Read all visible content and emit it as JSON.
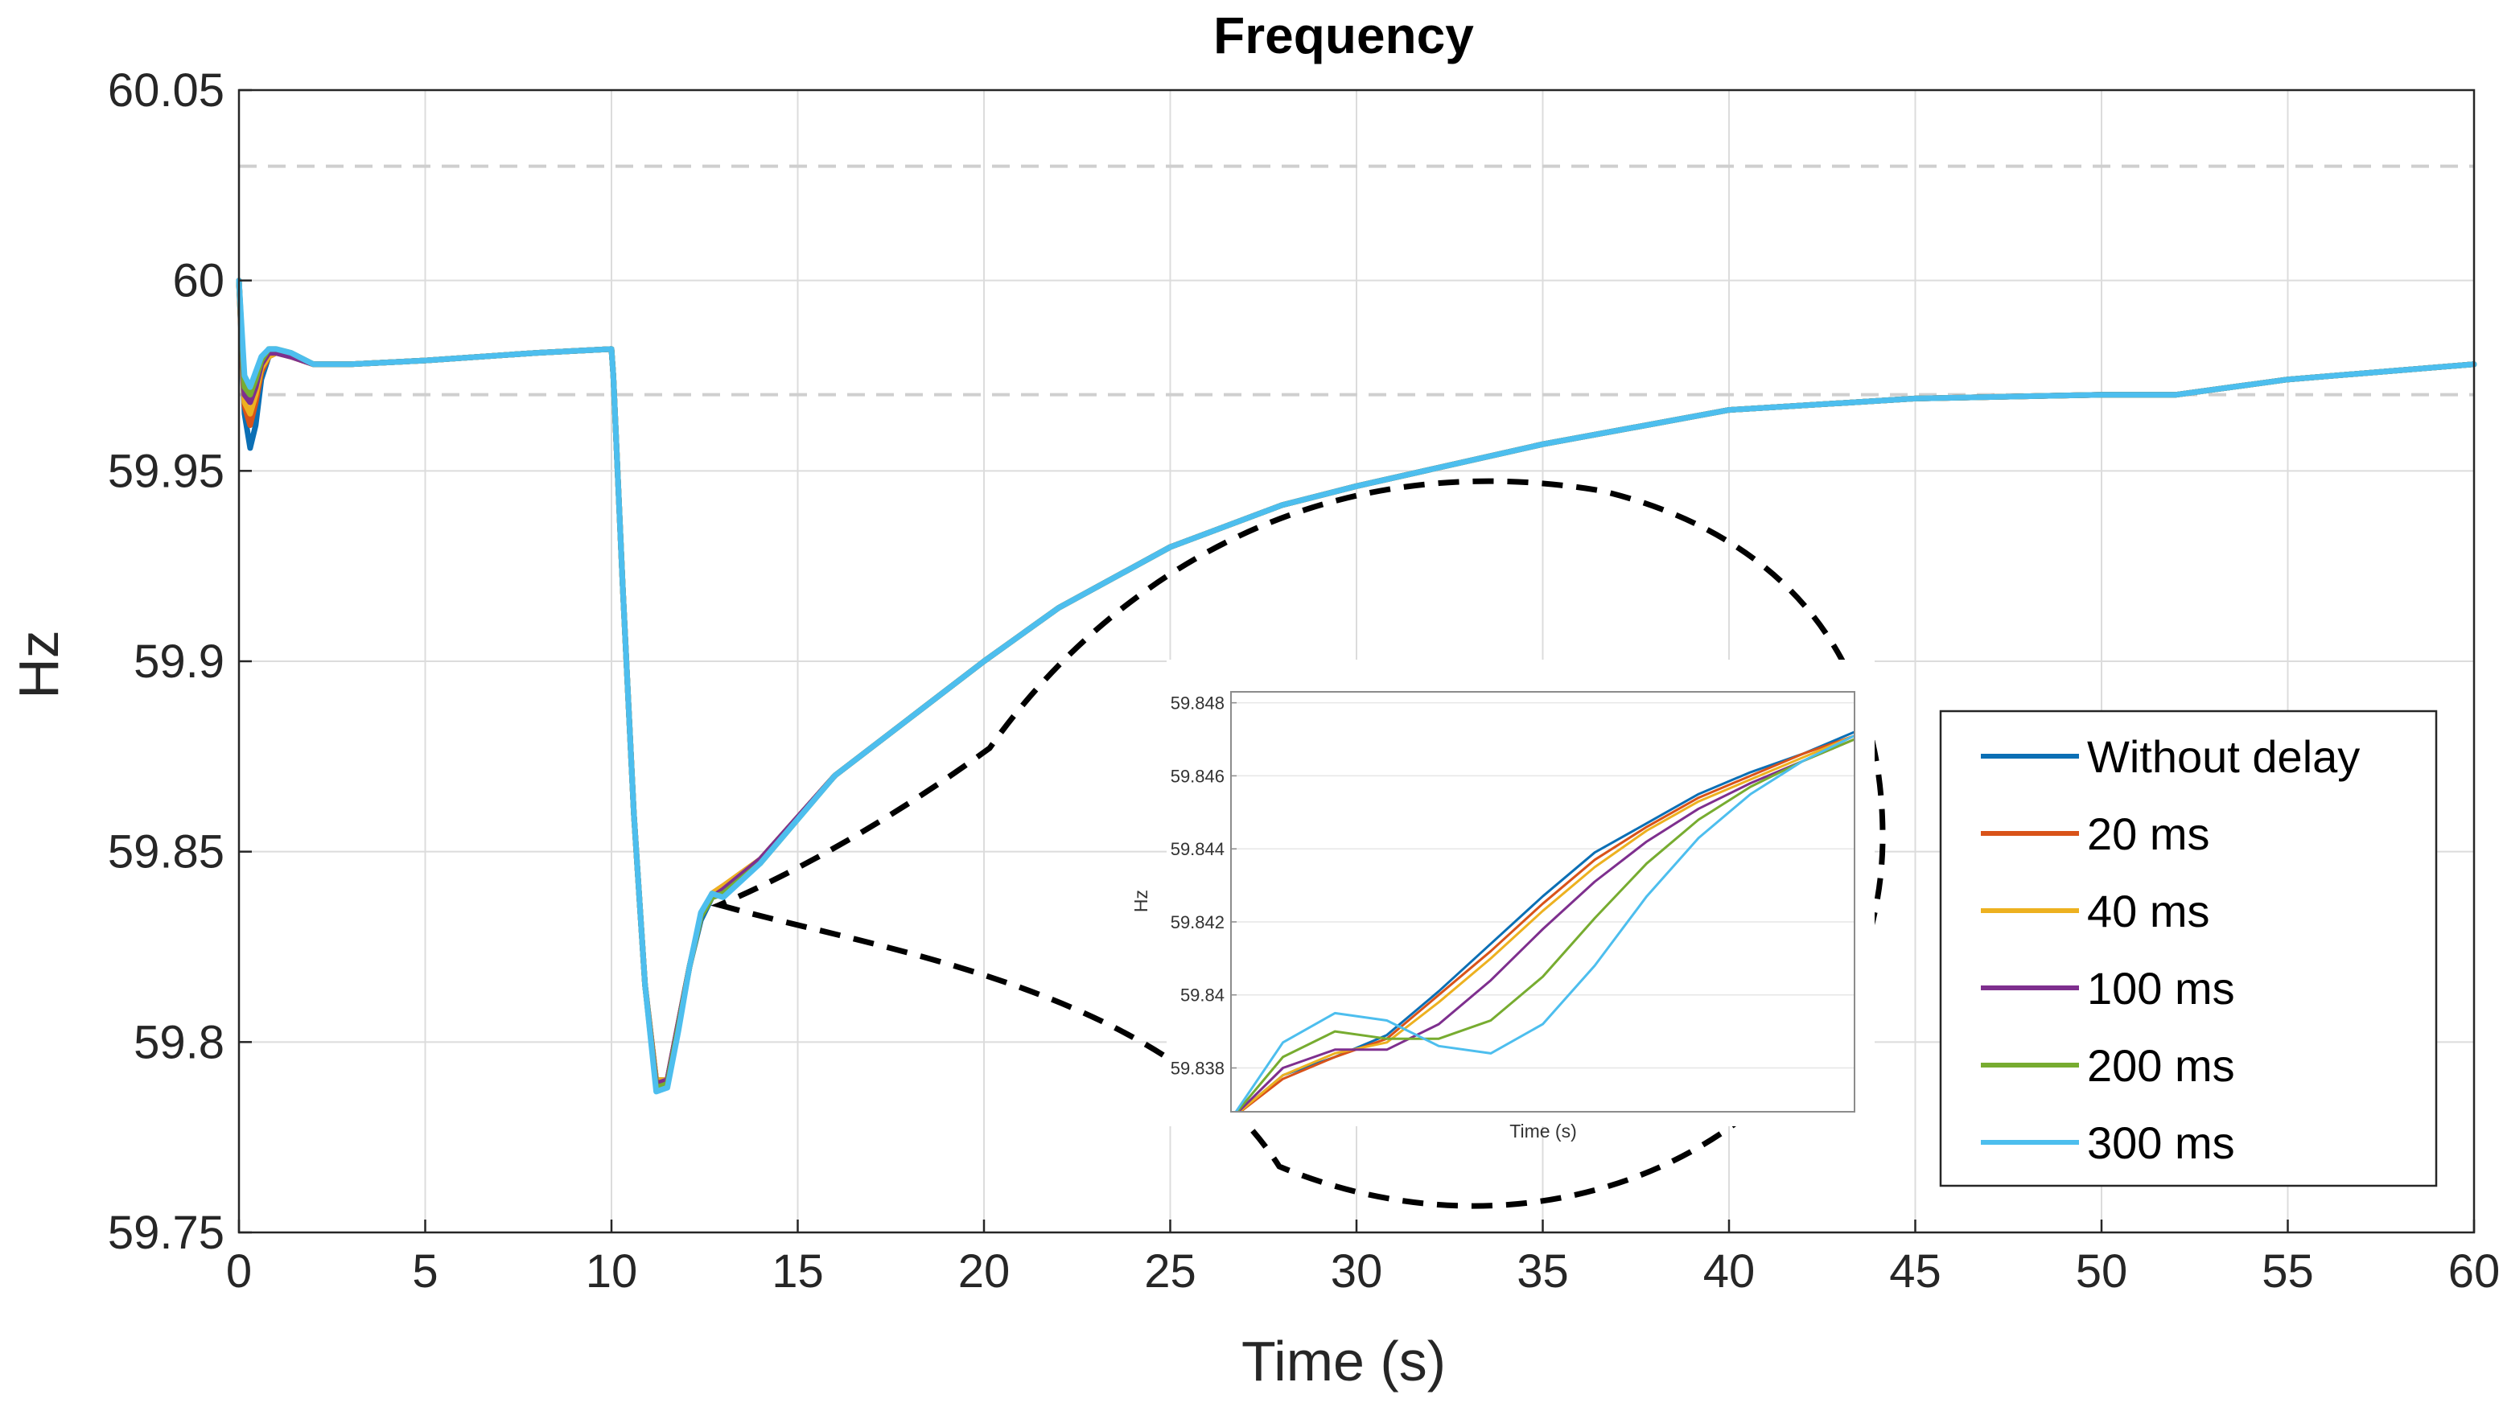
{
  "chart_data": {
    "type": "line",
    "title": "Frequency",
    "xlabel": "Time (s)",
    "ylabel": "Hz",
    "xlim": [
      0,
      60
    ],
    "ylim": [
      59.75,
      60.05
    ],
    "grid": true,
    "x_ticks": [
      0,
      5,
      10,
      15,
      20,
      25,
      30,
      35,
      40,
      45,
      50,
      55,
      60
    ],
    "x_tick_labels": [
      "0",
      "5",
      "10",
      "15",
      "20",
      "25",
      "30",
      "35",
      "40",
      "45",
      "50",
      "55",
      "60"
    ],
    "y_ticks": [
      59.75,
      59.8,
      59.85,
      59.9,
      59.95,
      60,
      60.05
    ],
    "y_tick_labels": [
      "59.75",
      "59.8",
      "59.85",
      "59.9",
      "59.95",
      "60",
      "60.05"
    ],
    "reference_lines": [
      {
        "y": 60.03,
        "style": "dashed"
      },
      {
        "y": 59.97,
        "style": "dashed"
      }
    ],
    "legend_position": "bottom-right",
    "series": [
      {
        "name": "Without delay",
        "color": "#0b6fb5",
        "x": [
          0,
          0.15,
          0.3,
          0.45,
          0.6,
          0.8,
          1.0,
          1.4,
          2.0,
          3.0,
          5.0,
          8.0,
          10.0,
          10.05,
          10.3,
          10.6,
          10.9,
          11.2,
          11.5,
          11.8,
          12.1,
          12.4,
          12.7,
          13.0,
          14.0,
          16.0,
          18.0,
          20.0,
          22.0,
          25.0,
          28.0,
          30.0,
          35.0,
          40.0,
          45.0,
          50.0,
          52.0,
          55.0,
          60.0
        ],
        "y": [
          60.0,
          59.965,
          59.956,
          59.962,
          59.974,
          59.98,
          59.981,
          59.98,
          59.978,
          59.978,
          59.979,
          59.981,
          59.982,
          59.975,
          59.92,
          59.86,
          59.815,
          59.79,
          59.79,
          59.805,
          59.82,
          59.832,
          59.838,
          59.84,
          59.848,
          59.87,
          59.885,
          59.9,
          59.914,
          59.93,
          59.941,
          59.946,
          59.957,
          59.966,
          59.969,
          59.97,
          59.97,
          59.974,
          59.978
        ]
      },
      {
        "name": "20 ms",
        "color": "#d95319",
        "x": [
          0,
          0.15,
          0.3,
          0.45,
          0.6,
          0.8,
          1.0,
          1.4,
          2.0,
          3.0,
          5.0,
          8.0,
          10.0,
          10.05,
          10.3,
          10.6,
          10.9,
          11.2,
          11.5,
          11.8,
          12.1,
          12.4,
          12.7,
          13.0,
          14.0,
          16.0,
          18.0,
          20.0,
          22.0,
          25.0,
          28.0,
          30.0,
          35.0,
          40.0,
          45.0,
          50.0,
          52.0,
          55.0,
          60.0
        ],
        "y": [
          60.0,
          59.967,
          59.962,
          59.968,
          59.976,
          59.98,
          59.981,
          59.98,
          59.978,
          59.978,
          59.979,
          59.981,
          59.982,
          59.975,
          59.92,
          59.86,
          59.815,
          59.79,
          59.79,
          59.805,
          59.82,
          59.833,
          59.839,
          59.841,
          59.848,
          59.87,
          59.885,
          59.9,
          59.914,
          59.93,
          59.941,
          59.946,
          59.957,
          59.966,
          59.969,
          59.97,
          59.97,
          59.974,
          59.978
        ]
      },
      {
        "name": "40 ms",
        "color": "#edb120",
        "x": [
          0,
          0.15,
          0.3,
          0.45,
          0.6,
          0.8,
          1.0,
          1.4,
          2.0,
          3.0,
          5.0,
          8.0,
          10.0,
          10.05,
          10.3,
          10.6,
          10.9,
          11.2,
          11.5,
          11.8,
          12.1,
          12.4,
          12.7,
          13.0,
          14.0,
          16.0,
          18.0,
          20.0,
          22.0,
          25.0,
          28.0,
          30.0,
          35.0,
          40.0,
          45.0,
          50.0,
          52.0,
          55.0,
          60.0
        ],
        "y": [
          60.0,
          59.968,
          59.965,
          59.97,
          59.977,
          59.98,
          59.981,
          59.98,
          59.978,
          59.978,
          59.979,
          59.981,
          59.982,
          59.975,
          59.92,
          59.86,
          59.815,
          59.79,
          59.79,
          59.805,
          59.82,
          59.833,
          59.839,
          59.841,
          59.848,
          59.87,
          59.885,
          59.9,
          59.914,
          59.93,
          59.941,
          59.946,
          59.957,
          59.966,
          59.969,
          59.97,
          59.97,
          59.974,
          59.978
        ]
      },
      {
        "name": "100 ms",
        "color": "#7e2f8e",
        "x": [
          0,
          0.15,
          0.3,
          0.45,
          0.6,
          0.8,
          1.0,
          1.4,
          2.0,
          3.0,
          5.0,
          8.0,
          10.0,
          10.05,
          10.3,
          10.6,
          10.9,
          11.2,
          11.5,
          11.8,
          12.1,
          12.4,
          12.7,
          13.0,
          14.0,
          16.0,
          18.0,
          20.0,
          22.0,
          25.0,
          28.0,
          30.0,
          35.0,
          40.0,
          45.0,
          50.0,
          52.0,
          55.0,
          60.0
        ],
        "y": [
          60.0,
          59.97,
          59.968,
          59.972,
          59.978,
          59.981,
          59.981,
          59.98,
          59.978,
          59.978,
          59.979,
          59.981,
          59.982,
          59.975,
          59.92,
          59.86,
          59.815,
          59.789,
          59.79,
          59.805,
          59.82,
          59.833,
          59.838,
          59.84,
          59.848,
          59.87,
          59.885,
          59.9,
          59.914,
          59.93,
          59.941,
          59.946,
          59.957,
          59.966,
          59.969,
          59.97,
          59.97,
          59.974,
          59.978
        ]
      },
      {
        "name": "200 ms",
        "color": "#77ac30",
        "x": [
          0,
          0.15,
          0.3,
          0.45,
          0.6,
          0.8,
          1.0,
          1.4,
          2.0,
          3.0,
          5.0,
          8.0,
          10.0,
          10.05,
          10.3,
          10.6,
          10.9,
          11.2,
          11.5,
          11.8,
          12.1,
          12.4,
          12.7,
          13.0,
          14.0,
          16.0,
          18.0,
          20.0,
          22.0,
          25.0,
          28.0,
          30.0,
          35.0,
          40.0,
          45.0,
          50.0,
          52.0,
          55.0,
          60.0
        ],
        "y": [
          60.0,
          59.972,
          59.97,
          59.974,
          59.979,
          59.982,
          59.982,
          59.981,
          59.978,
          59.978,
          59.979,
          59.981,
          59.982,
          59.975,
          59.92,
          59.86,
          59.815,
          59.788,
          59.789,
          59.804,
          59.82,
          59.833,
          59.838,
          59.839,
          59.847,
          59.87,
          59.885,
          59.9,
          59.914,
          59.93,
          59.941,
          59.946,
          59.957,
          59.966,
          59.969,
          59.97,
          59.97,
          59.974,
          59.978
        ]
      },
      {
        "name": "300 ms",
        "color": "#4dbeee",
        "x": [
          0,
          0.15,
          0.3,
          0.45,
          0.6,
          0.8,
          1.0,
          1.4,
          2.0,
          3.0,
          5.0,
          8.0,
          10.0,
          10.05,
          10.3,
          10.6,
          10.9,
          11.2,
          11.5,
          11.8,
          12.1,
          12.4,
          12.7,
          13.0,
          14.0,
          16.0,
          18.0,
          20.0,
          22.0,
          25.0,
          28.0,
          30.0,
          35.0,
          40.0,
          45.0,
          50.0,
          52.0,
          55.0,
          60.0
        ],
        "y": [
          60.0,
          59.975,
          59.972,
          59.976,
          59.98,
          59.982,
          59.982,
          59.981,
          59.978,
          59.978,
          59.979,
          59.981,
          59.982,
          59.975,
          59.92,
          59.86,
          59.815,
          59.787,
          59.788,
          59.803,
          59.82,
          59.834,
          59.839,
          59.838,
          59.847,
          59.87,
          59.885,
          59.9,
          59.914,
          59.93,
          59.941,
          59.946,
          59.957,
          59.966,
          59.969,
          59.97,
          59.97,
          59.974,
          59.978
        ]
      }
    ],
    "inset": {
      "xlabel": "Time (s)",
      "ylabel": "Hz",
      "xlim": [
        12.8,
        13.4
      ],
      "ylim": [
        59.8368,
        59.8483
      ],
      "y_ticks": [
        59.838,
        59.84,
        59.842,
        59.844,
        59.846,
        59.848
      ],
      "y_tick_labels": [
        "59.838",
        "59.84",
        "59.842",
        "59.844",
        "59.846",
        "59.848"
      ],
      "series": [
        {
          "name": "Without delay",
          "color": "#0b6fb5",
          "x": [
            12.8,
            12.85,
            12.9,
            12.95,
            13.0,
            13.05,
            13.1,
            13.15,
            13.2,
            13.25,
            13.3,
            13.35,
            13.4
          ],
          "y": [
            59.8366,
            59.8378,
            59.8383,
            59.8389,
            59.8401,
            59.8414,
            59.8427,
            59.8439,
            59.8447,
            59.8455,
            59.8461,
            59.8466,
            59.8472
          ]
        },
        {
          "name": "20 ms",
          "color": "#d95319",
          "x": [
            12.8,
            12.85,
            12.9,
            12.95,
            13.0,
            13.05,
            13.1,
            13.15,
            13.2,
            13.25,
            13.3,
            13.35,
            13.4
          ],
          "y": [
            59.8366,
            59.8377,
            59.8383,
            59.8388,
            59.84,
            59.8412,
            59.8425,
            59.8437,
            59.8446,
            59.8454,
            59.846,
            59.8466,
            59.8471
          ]
        },
        {
          "name": "40 ms",
          "color": "#edb120",
          "x": [
            12.8,
            12.85,
            12.9,
            12.95,
            13.0,
            13.05,
            13.1,
            13.15,
            13.2,
            13.25,
            13.3,
            13.35,
            13.4
          ],
          "y": [
            59.8366,
            59.8378,
            59.8384,
            59.8387,
            59.8398,
            59.841,
            59.8423,
            59.8435,
            59.8445,
            59.8453,
            59.8459,
            59.8465,
            59.8471
          ]
        },
        {
          "name": "100 ms",
          "color": "#7e2f8e",
          "x": [
            12.8,
            12.85,
            12.9,
            12.95,
            13.0,
            13.05,
            13.1,
            13.15,
            13.2,
            13.25,
            13.3,
            13.35,
            13.4
          ],
          "y": [
            59.8366,
            59.838,
            59.8385,
            59.8385,
            59.8392,
            59.8404,
            59.8418,
            59.8431,
            59.8442,
            59.8451,
            59.8458,
            59.8464,
            59.847
          ]
        },
        {
          "name": "200 ms",
          "color": "#77ac30",
          "x": [
            12.8,
            12.85,
            12.9,
            12.95,
            13.0,
            13.05,
            13.1,
            13.15,
            13.2,
            13.25,
            13.3,
            13.35,
            13.4
          ],
          "y": [
            59.8366,
            59.8383,
            59.839,
            59.8388,
            59.8388,
            59.8393,
            59.8405,
            59.8421,
            59.8436,
            59.8448,
            59.8457,
            59.8464,
            59.847
          ]
        },
        {
          "name": "300 ms",
          "color": "#4dbeee",
          "x": [
            12.8,
            12.85,
            12.9,
            12.95,
            13.0,
            13.05,
            13.1,
            13.15,
            13.2,
            13.25,
            13.3,
            13.35,
            13.4
          ],
          "y": [
            59.8366,
            59.8387,
            59.8395,
            59.8393,
            59.8386,
            59.8384,
            59.8392,
            59.8408,
            59.8427,
            59.8443,
            59.8455,
            59.8464,
            59.8471
          ]
        }
      ]
    }
  }
}
